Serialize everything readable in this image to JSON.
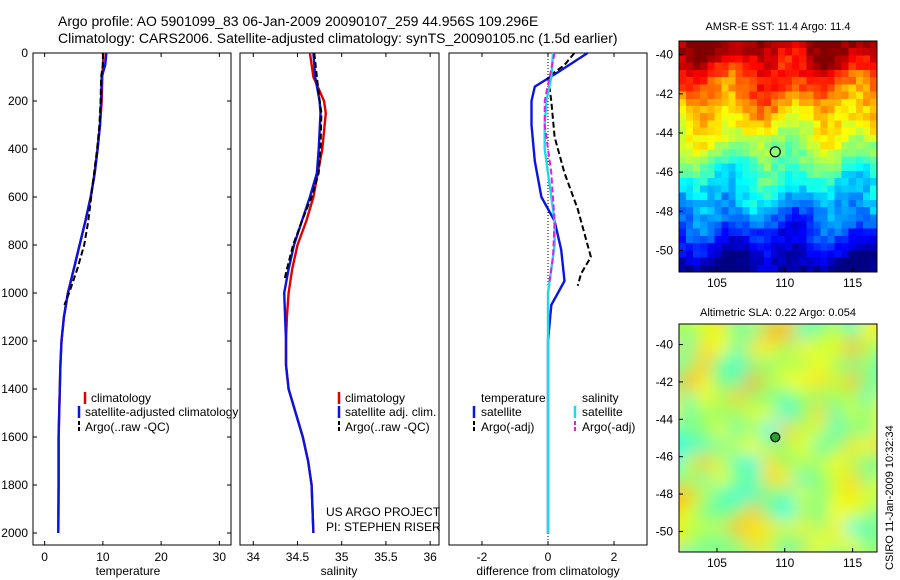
{
  "header": {
    "line1": "Argo profile: AO 5901099_83 06-Jan-2009 20090107_259 44.956S 109.296E",
    "line2": "Climatology: CARS2006. Satellite-adjusted climatology: synTS_20090105.nc (1.5d earlier)"
  },
  "colors": {
    "clim": "#e00000",
    "sat": "#0a14e0",
    "argo": "#000000",
    "cyan": "#22d8e8",
    "magenta": "#e020e0"
  },
  "depth_axis": {
    "range": [
      0,
      2050
    ],
    "ticks": [
      0,
      200,
      400,
      600,
      800,
      1000,
      1200,
      1400,
      1600,
      1800,
      2000
    ]
  },
  "chart_data": [
    {
      "id": "temperature",
      "type": "line",
      "xlabel": "temperature",
      "ylabel": "",
      "xlim": [
        -2,
        32
      ],
      "ylim": [
        2050,
        0
      ],
      "xticks": [
        0,
        10,
        20,
        30
      ],
      "series": [
        {
          "name": "climatology",
          "color": "clim",
          "dash": false,
          "x": [
            10.1,
            10.0,
            9.9,
            9.8,
            9.5,
            9.1,
            8.6,
            7.9,
            7.0,
            6.0,
            5.0,
            4.0,
            3.3,
            2.9,
            2.7,
            2.6,
            2.5,
            2.4,
            2.4,
            2.35
          ],
          "y": [
            0,
            50,
            100,
            200,
            300,
            400,
            500,
            600,
            700,
            800,
            900,
            1000,
            1100,
            1200,
            1300,
            1400,
            1500,
            1600,
            1800,
            2000
          ]
        },
        {
          "name": "satellite-adjusted climatology",
          "color": "sat",
          "dash": false,
          "x": [
            10.6,
            10.4,
            9.8,
            9.7,
            9.5,
            9.1,
            8.6,
            7.9,
            7.0,
            6.0,
            5.0,
            4.0,
            3.3,
            2.9,
            2.7,
            2.6,
            2.5,
            2.4,
            2.4,
            2.35
          ],
          "y": [
            0,
            50,
            100,
            200,
            300,
            400,
            500,
            600,
            700,
            800,
            900,
            1000,
            1100,
            1200,
            1300,
            1400,
            1500,
            1600,
            1800,
            2000
          ]
        },
        {
          "name": "Argo(..raw -QC)",
          "color": "argo",
          "dash": true,
          "x": [
            10.0,
            10.0,
            9.7,
            9.6,
            9.4,
            9.0,
            8.5,
            8.0,
            7.5,
            6.8,
            5.6,
            4.2,
            3.4
          ],
          "y": [
            0,
            50,
            100,
            200,
            300,
            400,
            500,
            600,
            700,
            800,
            900,
            1000,
            1050
          ]
        }
      ],
      "legend": [
        "climatology",
        "satellite-adjusted climatology",
        "Argo(..raw -QC)"
      ]
    },
    {
      "id": "salinity",
      "type": "line",
      "xlabel": "salinity",
      "ylabel": "",
      "xlim": [
        33.85,
        36.1
      ],
      "xticks": [
        34,
        34.5,
        35,
        35.5,
        36
      ],
      "xtick_labels": [
        "34",
        "34.5",
        "35",
        "35.5",
        "36"
      ],
      "series": [
        {
          "name": "climatology",
          "color": "clim",
          "dash": false,
          "x": [
            34.64,
            34.68,
            34.8,
            34.82,
            34.78,
            34.73,
            34.68,
            34.6,
            34.5,
            34.44,
            34.4,
            34.38,
            34.37,
            34.37,
            34.4,
            34.48,
            34.56,
            34.62,
            34.66,
            34.68
          ],
          "y": [
            0,
            100,
            200,
            250,
            400,
            500,
            600,
            700,
            800,
            900,
            1000,
            1100,
            1200,
            1300,
            1400,
            1500,
            1600,
            1700,
            1800,
            2000
          ]
        },
        {
          "name": "satellite adj. clim.",
          "color": "sat",
          "dash": false,
          "x": [
            34.68,
            34.7,
            34.75,
            34.76,
            34.74,
            34.72,
            34.64,
            34.55,
            34.46,
            34.4,
            34.35,
            34.36,
            34.37,
            34.37,
            34.4,
            34.48,
            34.56,
            34.62,
            34.66,
            34.68
          ],
          "y": [
            0,
            100,
            200,
            250,
            400,
            500,
            600,
            700,
            800,
            900,
            1000,
            1100,
            1200,
            1300,
            1400,
            1500,
            1600,
            1700,
            1800,
            2000
          ]
        },
        {
          "name": "Argo(..raw -QC)",
          "color": "argo",
          "dash": true,
          "x": [
            34.69,
            34.72,
            34.75,
            34.77,
            34.76,
            34.74,
            34.66,
            34.55,
            34.45,
            34.38,
            34.35
          ],
          "y": [
            0,
            100,
            200,
            250,
            400,
            500,
            600,
            700,
            800,
            900,
            950
          ]
        }
      ],
      "legend": [
        "climatology",
        "satellite adj. clim.",
        "Argo(..raw -QC)"
      ],
      "annotation": [
        "US ARGO PROJECT",
        "PI: STEPHEN RISER"
      ]
    },
    {
      "id": "difference",
      "type": "line",
      "xlabel": "difference from climatology",
      "ylabel": "",
      "xlim": [
        -3,
        3
      ],
      "xticks": [
        -2,
        0,
        2
      ],
      "series": [
        {
          "name": "temperature satellite",
          "color": "sat",
          "dash": false,
          "x": [
            1.2,
            0.3,
            -0.4,
            -0.5,
            -0.5,
            -0.4,
            -0.2,
            0.2,
            0.4,
            0.5,
            0.1,
            0,
            0,
            0,
            0,
            0
          ],
          "y": [
            0,
            80,
            140,
            200,
            300,
            450,
            600,
            700,
            820,
            950,
            1050,
            1200,
            1400,
            1600,
            1800,
            2000
          ]
        },
        {
          "name": "temperature Argo(-adj)",
          "color": "argo",
          "dash": true,
          "x": [
            0.8,
            0.5,
            0.0,
            0.1,
            0.2,
            0.5,
            0.9,
            1.2,
            1.3,
            1.0,
            0.9
          ],
          "y": [
            0,
            50,
            100,
            200,
            350,
            500,
            650,
            800,
            850,
            920,
            970
          ]
        },
        {
          "name": "salinity satellite",
          "color": "cyan",
          "dash": false,
          "x": [
            0.15,
            0.1,
            -0.05,
            -0.1,
            -0.1,
            0,
            0.1,
            0.2,
            0.2,
            0.1,
            0,
            0,
            0,
            0,
            0
          ],
          "y": [
            0,
            100,
            200,
            300,
            400,
            500,
            600,
            700,
            800,
            900,
            1000,
            1200,
            1400,
            1600,
            2000
          ]
        },
        {
          "name": "salinity Argo(-adj)",
          "color": "magenta",
          "dash": true,
          "x": [
            0.2,
            0.05,
            -0.1,
            -0.1,
            0.0,
            0.1,
            0.2,
            0.15,
            0.1,
            0.05
          ],
          "y": [
            0,
            100,
            200,
            300,
            400,
            500,
            700,
            850,
            900,
            950
          ]
        }
      ],
      "legend_headers": [
        "temperature",
        "salinity"
      ],
      "legend": [
        "satellite",
        "Argo(-adj)",
        "satellite",
        "Argo(-adj)"
      ]
    },
    {
      "id": "sst_map",
      "type": "heatmap",
      "title": "AMSR-E SST: 11.4  Argo: 11.4",
      "xlim": [
        102.2,
        116.8
      ],
      "ylim": [
        -51.1,
        -39.3
      ],
      "xticks": [
        105,
        110,
        115
      ],
      "yticks": [
        -40,
        -42,
        -44,
        -46,
        -48,
        -50
      ],
      "marker": {
        "lon": 109.3,
        "lat": -44.96
      }
    },
    {
      "id": "sla_map",
      "type": "heatmap",
      "title": "Altimetric SLA: 0.22  Argo: 0.054",
      "xlim": [
        102.2,
        116.8
      ],
      "ylim": [
        -51.1,
        -38.9
      ],
      "xticks": [
        105,
        110,
        115
      ],
      "yticks": [
        -40,
        -42,
        -44,
        -46,
        -48,
        -50
      ],
      "marker": {
        "lon": 109.3,
        "lat": -44.96
      }
    }
  ],
  "side_label": "CSIRO 11-Jan-2009 10:32:34"
}
